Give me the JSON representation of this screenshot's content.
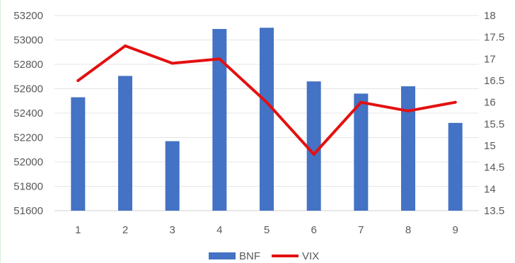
{
  "chart_data": {
    "type": "bar",
    "categories": [
      "1",
      "2",
      "3",
      "4",
      "5",
      "6",
      "7",
      "8",
      "9"
    ],
    "series": [
      {
        "name": "BNF",
        "type": "bar",
        "axis": "left",
        "color": "#4472C4",
        "values": [
          52530,
          52705,
          52170,
          53090,
          53100,
          52660,
          52560,
          52620,
          52320
        ]
      },
      {
        "name": "VIX",
        "type": "line",
        "axis": "right",
        "color": "#E31010",
        "values": [
          16.5,
          17.3,
          16.9,
          17.0,
          16.0,
          14.8,
          16.0,
          15.8,
          16.0
        ]
      }
    ],
    "y_left": {
      "ylim": [
        51600,
        53200
      ],
      "ticks": [
        "51600",
        "51800",
        "52000",
        "52200",
        "52400",
        "52600",
        "52800",
        "53000",
        "53200"
      ]
    },
    "y_right": {
      "ylim": [
        13.5,
        18
      ],
      "ticks": [
        "13.5",
        "14",
        "14.5",
        "15",
        "15.5",
        "16",
        "16.5",
        "17",
        "17.5",
        "18"
      ]
    },
    "grid": true,
    "legend": "bottom-center"
  }
}
